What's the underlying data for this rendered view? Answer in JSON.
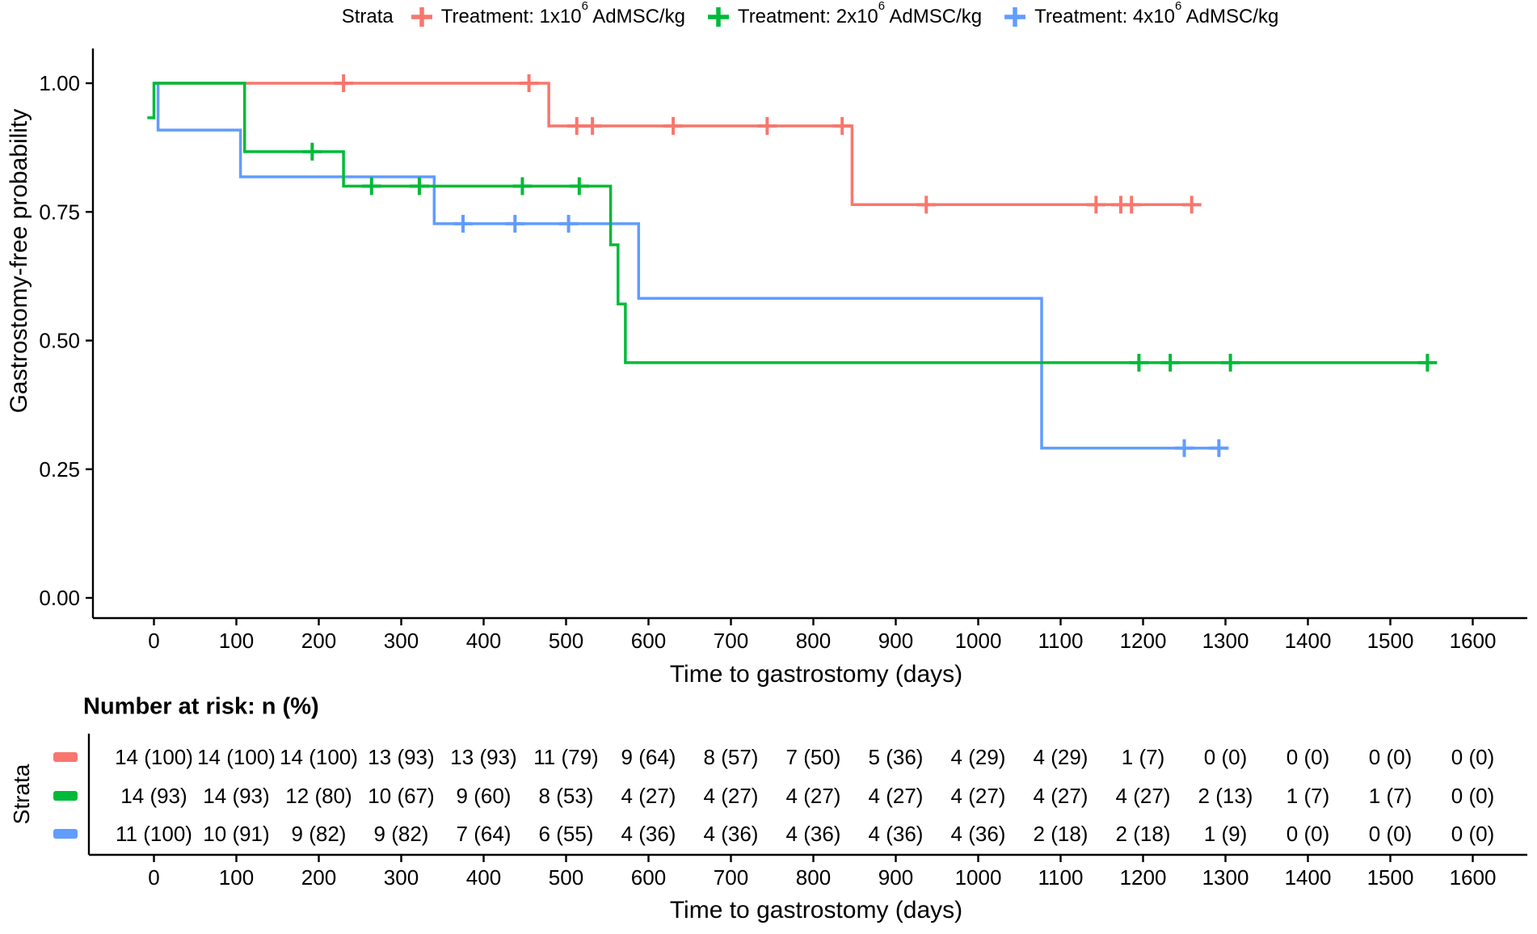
{
  "figure": {
    "legend": {
      "title": "Strata",
      "items": [
        {
          "prefix": "Treatment: 1x10",
          "sup": "6",
          "suffix": " AdMSC/kg"
        },
        {
          "prefix": "Treatment: 2x10",
          "sup": "6",
          "suffix": " AdMSC/kg"
        },
        {
          "prefix": "Treatment: 4x10",
          "sup": "6",
          "suffix": " AdMSC/kg"
        }
      ]
    },
    "y_axis_title": "Gastrostomy-free probability",
    "x_axis_title": "Time to gastrostomy (days)",
    "risk_table_title": "Number at risk: n (%)",
    "risk_table_y_label": "Strata",
    "risk_table_x_title": "Time to gastrostomy (days)"
  },
  "chart_data": {
    "type": "line",
    "subtype": "kaplan-meier-step",
    "title": "",
    "xlabel": "Time to gastrostomy (days)",
    "ylabel": "Gastrostomy-free probability",
    "xlim": [
      -74,
      1666
    ],
    "ylim": [
      0,
      1.0
    ],
    "grid": false,
    "legend_position": "top",
    "x_ticks": [
      0,
      100,
      200,
      300,
      400,
      500,
      600,
      700,
      800,
      900,
      1000,
      1100,
      1200,
      1300,
      1400,
      1500,
      1600
    ],
    "y_ticks": [
      {
        "v": 0.0,
        "label": "0.00"
      },
      {
        "v": 0.25,
        "label": "0.25"
      },
      {
        "v": 0.5,
        "label": "0.50"
      },
      {
        "v": 0.75,
        "label": "0.75"
      },
      {
        "v": 1.0,
        "label": "1.00"
      }
    ],
    "series": [
      {
        "name": "Treatment: 1x10⁶ AdMSC/kg",
        "color": "#F8766D",
        "steps": [
          [
            0,
            1.0
          ],
          [
            479,
            1.0
          ],
          [
            479,
            0.917
          ],
          [
            847,
            0.917
          ],
          [
            847,
            0.764
          ],
          [
            1267,
            0.764
          ]
        ],
        "censors": [
          [
            230,
            1.0
          ],
          [
            455,
            1.0
          ],
          [
            513,
            0.917
          ],
          [
            532,
            0.917
          ],
          [
            630,
            0.917
          ],
          [
            744,
            0.917
          ],
          [
            835,
            0.917
          ],
          [
            937,
            0.764
          ],
          [
            1143,
            0.764
          ],
          [
            1173,
            0.764
          ],
          [
            1186,
            0.764
          ],
          [
            1259,
            0.764
          ]
        ]
      },
      {
        "name": "Treatment: 4x10⁶ AdMSC/kg",
        "color": "#619CFF",
        "steps": [
          [
            0,
            1.0
          ],
          [
            5,
            1.0
          ],
          [
            5,
            0.909
          ],
          [
            105,
            0.909
          ],
          [
            105,
            0.818
          ],
          [
            340,
            0.818
          ],
          [
            340,
            0.727
          ],
          [
            588,
            0.727
          ],
          [
            588,
            0.582
          ],
          [
            1077,
            0.582
          ],
          [
            1077,
            0.291
          ],
          [
            1292,
            0.291
          ]
        ],
        "censors": [
          [
            375,
            0.727
          ],
          [
            438,
            0.727
          ],
          [
            503,
            0.727
          ],
          [
            1250,
            0.291
          ],
          [
            1292,
            0.291
          ]
        ]
      },
      {
        "name": "Treatment: 2x10⁶ AdMSC/kg",
        "color": "#00BA38",
        "steps": [
          [
            -8,
            0.933
          ],
          [
            0,
            0.933
          ],
          [
            0,
            1.0
          ],
          [
            110,
            1.0
          ],
          [
            110,
            0.867
          ],
          [
            230,
            0.867
          ],
          [
            230,
            0.8
          ],
          [
            554,
            0.8
          ],
          [
            554,
            0.686
          ],
          [
            563,
            0.686
          ],
          [
            563,
            0.571
          ],
          [
            572,
            0.571
          ],
          [
            572,
            0.457
          ],
          [
            1545,
            0.457
          ]
        ],
        "censors": [
          [
            192,
            0.867
          ],
          [
            264,
            0.8
          ],
          [
            322,
            0.8
          ],
          [
            447,
            0.8
          ],
          [
            516,
            0.8
          ],
          [
            1195,
            0.457
          ],
          [
            1233,
            0.457
          ],
          [
            1306,
            0.457
          ],
          [
            1545,
            0.457
          ]
        ]
      }
    ],
    "risk_table": {
      "title": "Number at risk: n (%)",
      "y_label": "Strata",
      "xlabel": "Time to gastrostomy (days)",
      "times": [
        0,
        100,
        200,
        300,
        400,
        500,
        600,
        700,
        800,
        900,
        1000,
        1100,
        1200,
        1300,
        1400,
        1500,
        1600
      ],
      "rows": [
        {
          "name": "Treatment: 1x10⁶ AdMSC/kg",
          "color": "#F8766D",
          "values": [
            "14 (100)",
            "14 (100)",
            "14 (100)",
            "13 (93)",
            "13 (93)",
            "11 (79)",
            "9 (64)",
            "8 (57)",
            "7 (50)",
            "5 (36)",
            "4 (29)",
            "4 (29)",
            "1 (7)",
            "0 (0)",
            "0 (0)",
            "0 (0)",
            "0 (0)"
          ]
        },
        {
          "name": "Treatment: 2x10⁶ AdMSC/kg",
          "color": "#00BA38",
          "values": [
            "14 (93)",
            "14 (93)",
            "12 (80)",
            "10 (67)",
            "9 (60)",
            "8 (53)",
            "4 (27)",
            "4 (27)",
            "4 (27)",
            "4 (27)",
            "4 (27)",
            "4 (27)",
            "4 (27)",
            "2 (13)",
            "1 (7)",
            "1 (7)",
            "0 (0)"
          ]
        },
        {
          "name": "Treatment: 4x10⁶ AdMSC/kg",
          "color": "#619CFF",
          "values": [
            "11 (100)",
            "10 (91)",
            "9 (82)",
            "9 (82)",
            "7 (64)",
            "6 (55)",
            "4 (36)",
            "4 (36)",
            "4 (36)",
            "4 (36)",
            "4 (36)",
            "2 (18)",
            "2 (18)",
            "1 (9)",
            "0 (0)",
            "0 (0)",
            "0 (0)"
          ]
        }
      ]
    }
  }
}
